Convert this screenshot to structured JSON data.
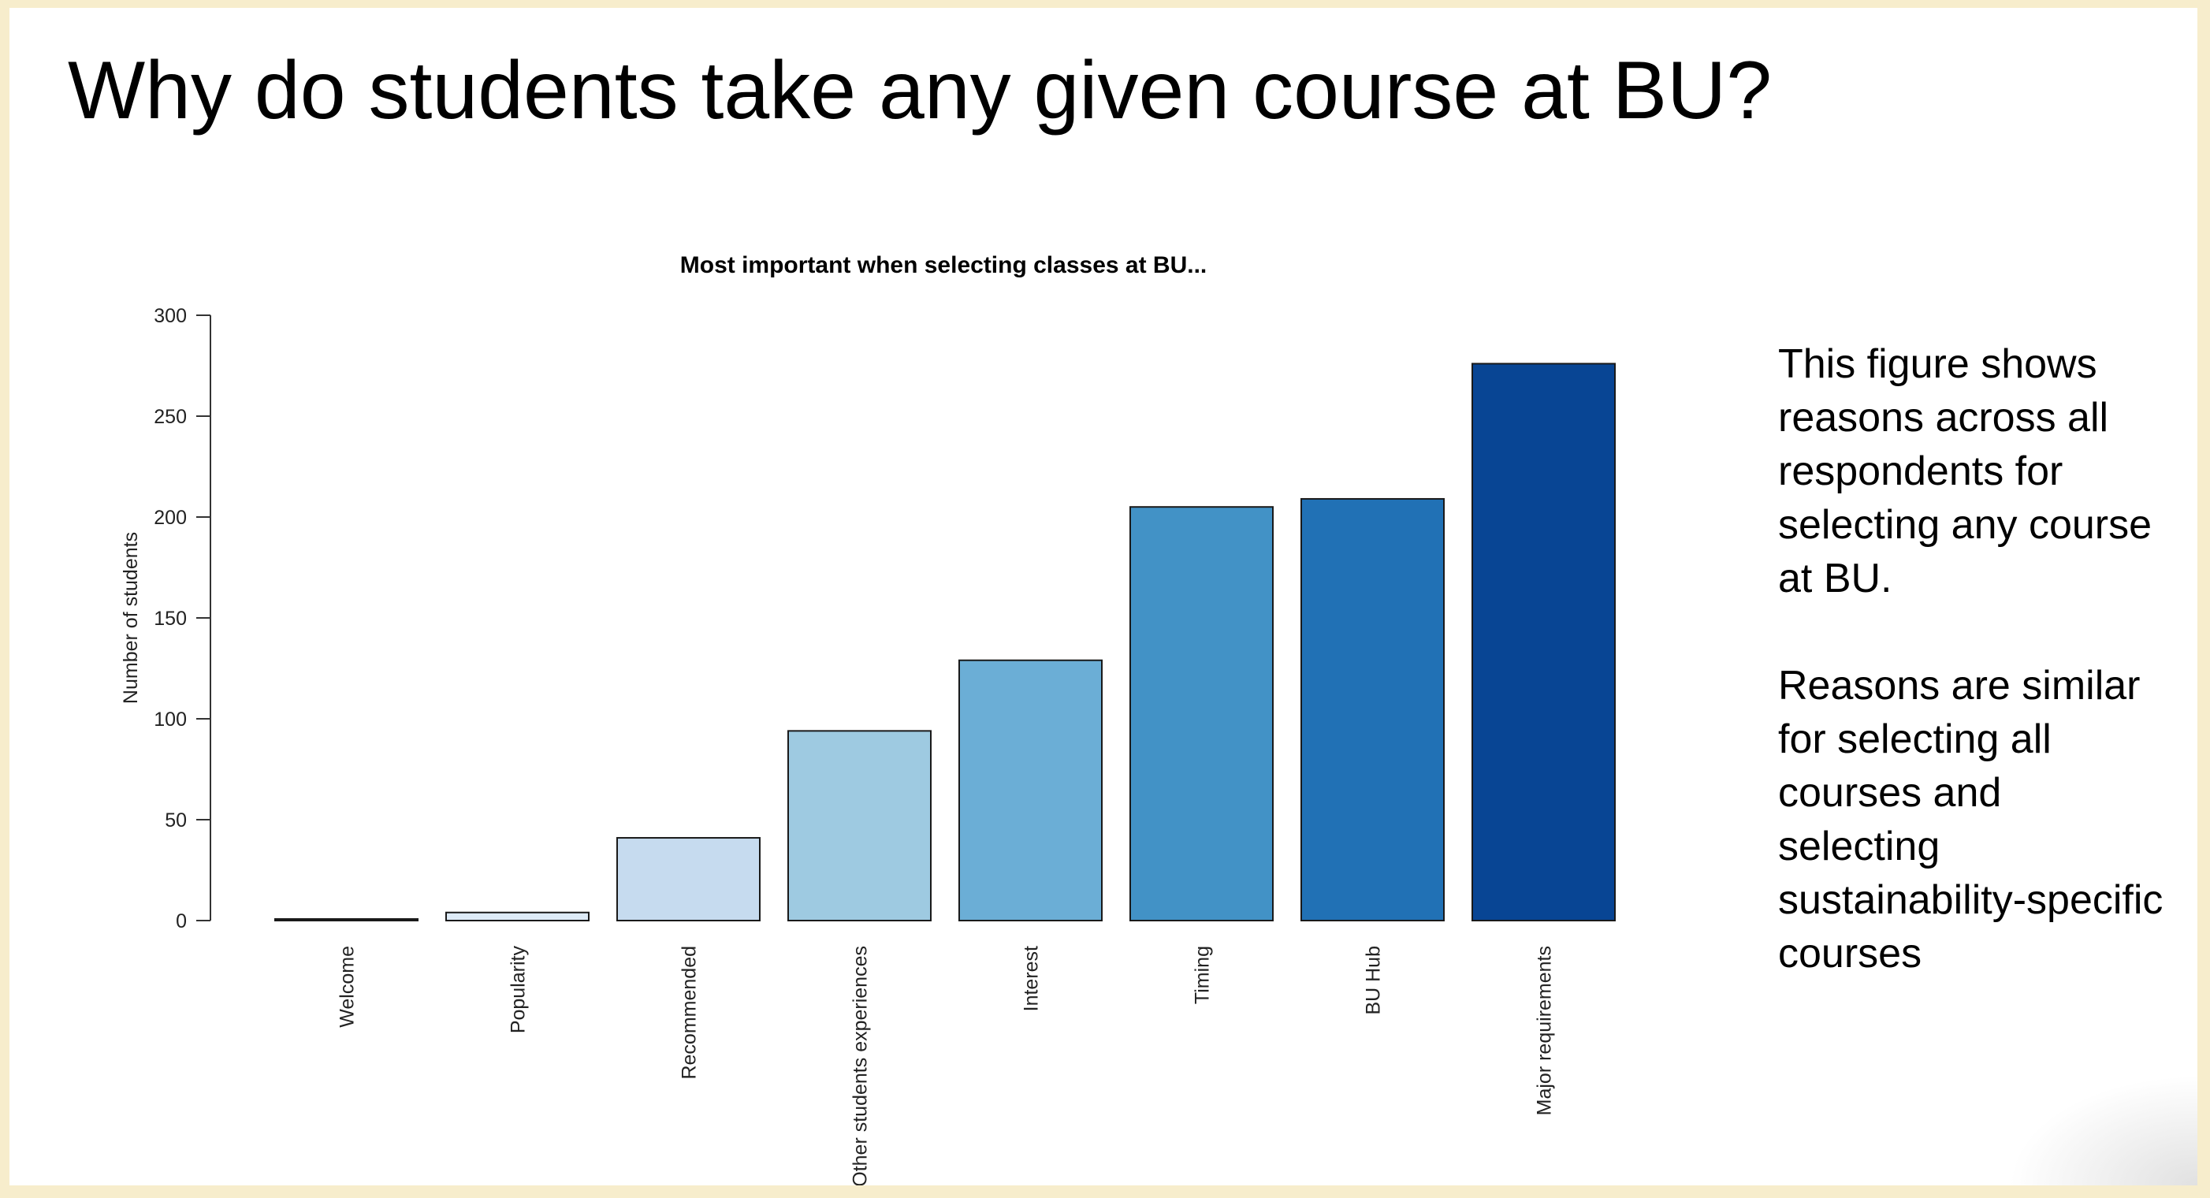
{
  "slide": {
    "title": "Why do students take any given course at BU?",
    "side_text": [
      "This figure shows reasons across all respondents for selecting any course at BU.",
      "Reasons are similar for selecting all courses and selecting sustainability-specific courses"
    ]
  },
  "chart_data": {
    "type": "bar",
    "title": "Most important when selecting classes at BU...",
    "xlabel": "",
    "ylabel": "Number of students",
    "ylim": [
      0,
      300
    ],
    "yticks": [
      0,
      50,
      100,
      150,
      200,
      250,
      300
    ],
    "grid": false,
    "categories": [
      "Welcome",
      "Popularity",
      "Recommended",
      "Other students experiences",
      "Interest",
      "Timing",
      "BU Hub",
      "Major requirements"
    ],
    "values": [
      0,
      4,
      41,
      94,
      129,
      205,
      209,
      276
    ],
    "colors": [
      "#f7fbff",
      "#deebf7",
      "#c6dbef",
      "#9ecae1",
      "#6baed6",
      "#4292c6",
      "#2171b5",
      "#084594"
    ]
  }
}
